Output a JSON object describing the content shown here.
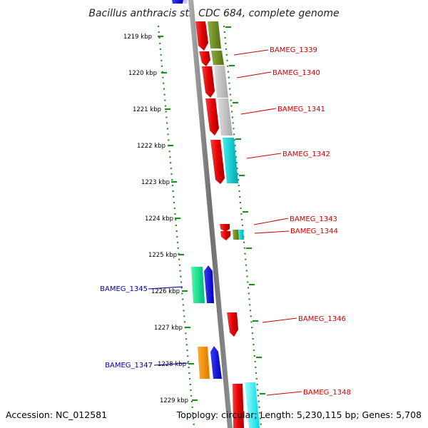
{
  "title": "Bacillus anthracis str. CDC 684, complete genome",
  "footer": {
    "accession": "Accession: NC_012581",
    "summary": "Topology: circular; Length: 5,230,115 bp; Genes: 5,708"
  },
  "scale": {
    "unit_label": "kbp",
    "ticks": [
      "1219 kbp",
      "1220 kbp",
      "1221 kbp",
      "1222 kbp",
      "1223 kbp",
      "1224 kbp",
      "1225 kbp",
      "1226 kbp",
      "1227 kbp",
      "1228 kbp",
      "1229 kbp"
    ]
  },
  "colors": {
    "forward_label": "#cc0000",
    "reverse_label": "#0000aa",
    "backbone": "#808080",
    "tick_dots": "#228b22"
  },
  "genes": [
    {
      "label": "BAMEG_1339",
      "strand": "forward",
      "start": 1218.9,
      "end": 1219.6,
      "feature_color": "#6b8e23"
    },
    {
      "label": "BAMEG_1340",
      "strand": "forward",
      "start": 1219.7,
      "end": 1220.7,
      "feature_color": "#c0c0c0"
    },
    {
      "label": "BAMEG_1341",
      "strand": "forward",
      "start": 1220.7,
      "end": 1221.7,
      "feature_color": "#c0c0c0"
    },
    {
      "label": "BAMEG_1342",
      "strand": "forward",
      "start": 1221.8,
      "end": 1223.0,
      "feature_color": "#00ced1"
    },
    {
      "label": "BAMEG_1343",
      "strand": "forward",
      "start": 1224.2,
      "end": 1224.4,
      "feature_color": "#ff0000"
    },
    {
      "label": "BAMEG_1344",
      "strand": "forward",
      "start": 1224.3,
      "end": 1224.6,
      "feature_color": "#3cb371"
    },
    {
      "label": "BAMEG_1345",
      "strand": "reverse",
      "start": 1225.3,
      "end": 1226.3,
      "feature_color": "#0000ee"
    },
    {
      "label": "BAMEG_1346",
      "strand": "forward",
      "start": 1226.6,
      "end": 1227.2,
      "feature_color": "#ff0000"
    },
    {
      "label": "BAMEG_1347",
      "strand": "reverse",
      "start": 1227.5,
      "end": 1228.4,
      "feature_color": "#0000ee"
    },
    {
      "label": "BAMEG_1348",
      "strand": "forward",
      "start": 1228.5,
      "end": 1229.8,
      "feature_color": "#00ffff"
    }
  ]
}
